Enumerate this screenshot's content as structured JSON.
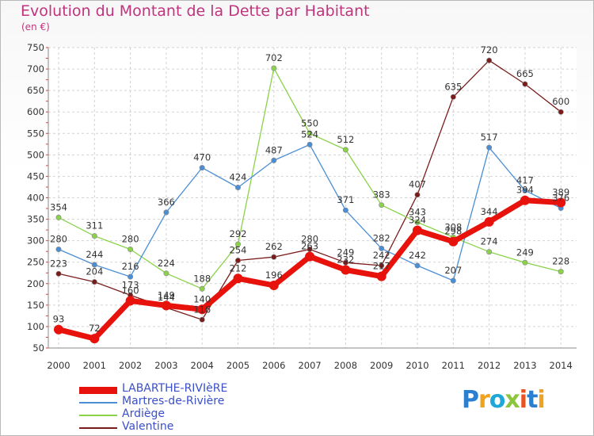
{
  "header": {
    "title": "Evolution du Montant de la Dette par Habitant",
    "unit": "(en €)"
  },
  "logo": {
    "text": "Proxiti"
  },
  "chart_data": {
    "type": "line",
    "title": "Evolution du Montant de la Dette par Habitant",
    "ylabel": "(en €)",
    "xlabel": "",
    "x": [
      "2000",
      "2001",
      "2002",
      "2003",
      "2004",
      "2005",
      "2006",
      "2007",
      "2008",
      "2009",
      "2010",
      "2011",
      "2012",
      "2013",
      "2014"
    ],
    "ylim": [
      50,
      750
    ],
    "yticks": [
      50,
      100,
      150,
      200,
      250,
      300,
      350,
      400,
      450,
      500,
      550,
      600,
      650,
      700,
      750
    ],
    "grid": true,
    "legend_position": "bottom-left",
    "series": [
      {
        "name": "LABARTHE-RIVIèRE",
        "color": "#e8120c",
        "values": [
          93,
          72,
          160,
          149,
          140,
          212,
          196,
          263,
          232,
          217,
          324,
          298,
          344,
          394,
          389
        ]
      },
      {
        "name": "Martres-de-Rivière",
        "color": "#4a8ed6",
        "values": [
          280,
          244,
          216,
          366,
          470,
          424,
          487,
          524,
          371,
          282,
          242,
          207,
          517,
          417,
          376
        ]
      },
      {
        "name": "Ardiège",
        "color": "#8ad24a",
        "values": [
          354,
          311,
          280,
          224,
          188,
          292,
          702,
          550,
          512,
          383,
          343,
          308,
          274,
          249,
          228
        ]
      },
      {
        "name": "Valentine",
        "color": "#7a1c1c",
        "values": [
          223,
          204,
          173,
          144,
          116,
          254,
          262,
          280,
          249,
          242,
          407,
          635,
          720,
          665,
          600
        ]
      }
    ]
  }
}
